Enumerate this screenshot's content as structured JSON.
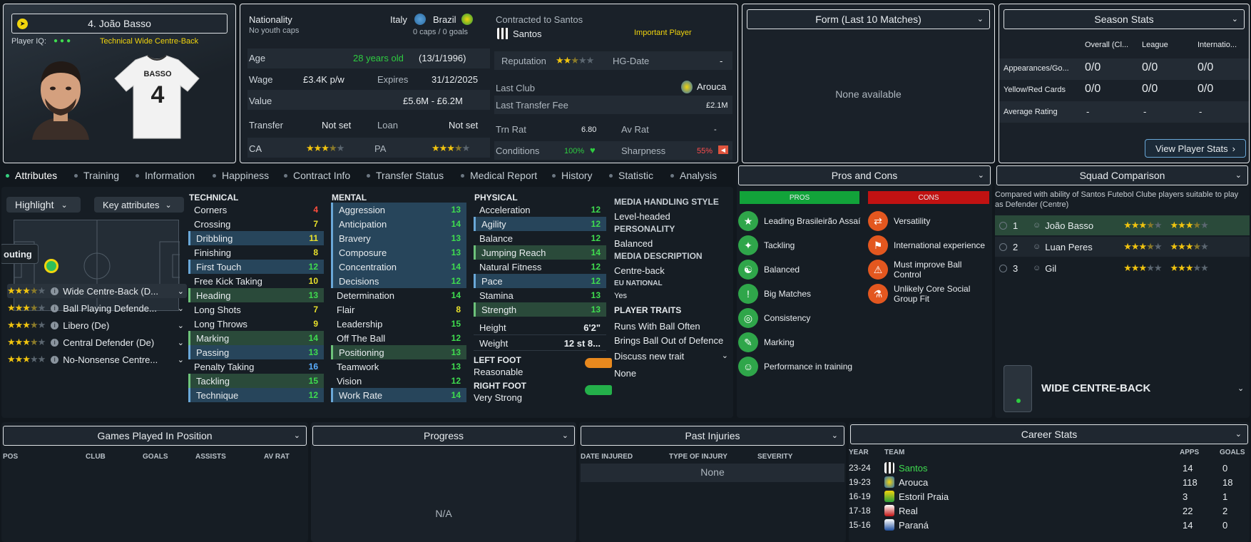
{
  "colors": {
    "accent_green": "#35d07f",
    "pros": "#12a33a",
    "cons": "#c11212",
    "yellow": "#f1d40d"
  },
  "player": {
    "name": "4. João Basso",
    "iq_label": "Player IQ:",
    "role_desc": "Technical Wide Centre-Back",
    "shirt_name": "BASSO",
    "shirt_number": "4"
  },
  "info": {
    "nationality_label": "Nationality",
    "nationality_sub": "No youth caps",
    "nat1": "Italy",
    "nat2": "Brazil",
    "caps": "0 caps / 0 goals",
    "age_label": "Age",
    "age": "28 years old",
    "dob": "(13/1/1996)",
    "wage_label": "Wage",
    "wage": "£3.4K p/w",
    "expires_label": "Expires",
    "expires": "31/12/2025",
    "value_label": "Value",
    "value": "£5.6M - £6.2M",
    "transfer_label": "Transfer",
    "transfer": "Not set",
    "loan_label": "Loan",
    "loan": "Not set",
    "ca_label": "CA",
    "pa_label": "PA"
  },
  "contract": {
    "contracted_label": "Contracted to Santos",
    "club": "Santos",
    "status": "Important Player",
    "reputation_label": "Reputation",
    "hg_label": "HG-Date",
    "hg_value": "-",
    "last_club_label": "Last Club",
    "last_club": "Arouca",
    "last_fee_label": "Last Transfer Fee",
    "last_fee": "£2.1M",
    "trn_label": "Trn Rat",
    "trn_value": "6.80",
    "av_label": "Av Rat",
    "av_value": "-",
    "conditions_label": "Conditions",
    "conditions_value": "100%",
    "sharpness_label": "Sharpness",
    "sharpness_value": "55%"
  },
  "form": {
    "title": "Form (Last 10 Matches)",
    "empty": "None available"
  },
  "season": {
    "title": "Season Stats",
    "cols": [
      "Overall (Cl...",
      "League",
      "Internatio..."
    ],
    "rows": [
      {
        "label": "Appearances/Go...",
        "vals": [
          "0/0",
          "0/0",
          "0/0"
        ]
      },
      {
        "label": "Yellow/Red Cards",
        "vals": [
          "0/0",
          "0/0",
          "0/0"
        ]
      },
      {
        "label": "Average Rating",
        "vals": [
          "-",
          "-",
          "-"
        ]
      }
    ],
    "button": "View Player Stats"
  },
  "tabs": [
    "Attributes",
    "Training",
    "Information",
    "Happiness",
    "Contract Info",
    "Transfer Status",
    "Medical Report",
    "History",
    "Statistic",
    "Analysis"
  ],
  "controls": {
    "highlight": "Highlight",
    "key_attrs": "Key attributes",
    "scouting": "outing"
  },
  "roles": [
    {
      "label": "Wide Centre-Back (D...",
      "stars": 3.5
    },
    {
      "label": "Ball Playing Defende...",
      "stars": 3.5
    },
    {
      "label": "Libero (De)",
      "stars": 3.5
    },
    {
      "label": "Central Defender (De)",
      "stars": 3.5
    },
    {
      "label": "No-Nonsense Centre...",
      "stars": 3
    }
  ],
  "technical": {
    "title": "TECHNICAL",
    "items": [
      {
        "n": "Corners",
        "v": "4",
        "c": "r",
        "h": ""
      },
      {
        "n": "Crossing",
        "v": "7",
        "c": "y",
        "h": ""
      },
      {
        "n": "Dribbling",
        "v": "11",
        "c": "y",
        "h": "hl"
      },
      {
        "n": "Finishing",
        "v": "8",
        "c": "y",
        "h": ""
      },
      {
        "n": "First Touch",
        "v": "12",
        "c": "g",
        "h": "hl"
      },
      {
        "n": "Free Kick Taking",
        "v": "10",
        "c": "y",
        "h": ""
      },
      {
        "n": "Heading",
        "v": "13",
        "c": "g",
        "h": "hlg"
      },
      {
        "n": "Long Shots",
        "v": "7",
        "c": "y",
        "h": ""
      },
      {
        "n": "Long Throws",
        "v": "9",
        "c": "y",
        "h": ""
      },
      {
        "n": "Marking",
        "v": "14",
        "c": "g",
        "h": "hlg"
      },
      {
        "n": "Passing",
        "v": "13",
        "c": "g",
        "h": "hl"
      },
      {
        "n": "Penalty Taking",
        "v": "16",
        "c": "b",
        "h": ""
      },
      {
        "n": "Tackling",
        "v": "15",
        "c": "g",
        "h": "hlg"
      },
      {
        "n": "Technique",
        "v": "12",
        "c": "g",
        "h": "hl"
      }
    ]
  },
  "mental": {
    "title": "MENTAL",
    "items": [
      {
        "n": "Aggression",
        "v": "13",
        "c": "g",
        "h": "hl"
      },
      {
        "n": "Anticipation",
        "v": "14",
        "c": "g",
        "h": "hl"
      },
      {
        "n": "Bravery",
        "v": "13",
        "c": "g",
        "h": "hl"
      },
      {
        "n": "Composure",
        "v": "13",
        "c": "g",
        "h": "hl"
      },
      {
        "n": "Concentration",
        "v": "14",
        "c": "g",
        "h": "hl"
      },
      {
        "n": "Decisions",
        "v": "12",
        "c": "g",
        "h": "hl"
      },
      {
        "n": "Determination",
        "v": "14",
        "c": "g",
        "h": ""
      },
      {
        "n": "Flair",
        "v": "8",
        "c": "y",
        "h": ""
      },
      {
        "n": "Leadership",
        "v": "15",
        "c": "g",
        "h": ""
      },
      {
        "n": "Off The Ball",
        "v": "12",
        "c": "g",
        "h": ""
      },
      {
        "n": "Positioning",
        "v": "13",
        "c": "g",
        "h": "hlg"
      },
      {
        "n": "Teamwork",
        "v": "13",
        "c": "g",
        "h": ""
      },
      {
        "n": "Vision",
        "v": "12",
        "c": "g",
        "h": ""
      },
      {
        "n": "Work Rate",
        "v": "14",
        "c": "g",
        "h": "hl"
      }
    ]
  },
  "physical": {
    "title": "PHYSICAL",
    "items": [
      {
        "n": "Acceleration",
        "v": "12",
        "c": "g",
        "h": ""
      },
      {
        "n": "Agility",
        "v": "12",
        "c": "g",
        "h": "hl"
      },
      {
        "n": "Balance",
        "v": "12",
        "c": "g",
        "h": ""
      },
      {
        "n": "Jumping Reach",
        "v": "14",
        "c": "g",
        "h": "hlg"
      },
      {
        "n": "Natural Fitness",
        "v": "12",
        "c": "g",
        "h": ""
      },
      {
        "n": "Pace",
        "v": "12",
        "c": "g",
        "h": "hl"
      },
      {
        "n": "Stamina",
        "v": "13",
        "c": "g",
        "h": ""
      },
      {
        "n": "Strength",
        "v": "13",
        "c": "g",
        "h": "hlg"
      }
    ],
    "height_label": "Height",
    "height": "6'2\"",
    "weight_label": "Weight",
    "weight": "12 st 8...",
    "left_foot_label": "LEFT FOOT",
    "left_foot": "Reasonable",
    "right_foot_label": "RIGHT FOOT",
    "right_foot": "Very Strong"
  },
  "media": {
    "style_label": "MEDIA HANDLING STYLE",
    "style": "Level-headed",
    "personality_label": "PERSONALITY",
    "personality": "Balanced",
    "desc_label": "MEDIA DESCRIPTION",
    "desc": "Centre-back",
    "eu_label": "EU NATIONAL",
    "eu": "Yes",
    "traits_label": "PLAYER TRAITS",
    "traits": [
      "Runs With Ball Often",
      "Brings Ball Out of Defence"
    ],
    "discuss": "Discuss new trait",
    "none": "None"
  },
  "proscons": {
    "title": "Pros and Cons",
    "pros_label": "PROS",
    "cons_label": "CONS",
    "pros": [
      "Leading Brasileirão Assaí",
      "Tackling",
      "Balanced",
      "Big Matches",
      "Consistency",
      "Marking",
      "Performance in training"
    ],
    "cons": [
      "Versatility",
      "International experience",
      "Must improve Ball Control",
      "Unlikely Core Social Group Fit"
    ]
  },
  "squad": {
    "title": "Squad Comparison",
    "desc": "Compared with ability of Santos Futebol Clube players suitable to play as Defender (Centre)",
    "rows": [
      {
        "rank": "1",
        "name": "João Basso",
        "ca": 3.5,
        "pa": 3.5
      },
      {
        "rank": "2",
        "name": "Luan Peres",
        "ca": 3.5,
        "pa": 3.5
      },
      {
        "rank": "3",
        "name": "Gil",
        "ca": 3,
        "pa": 3
      }
    ],
    "position": "WIDE CENTRE-BACK"
  },
  "games": {
    "title": "Games Played In Position",
    "cols": [
      "POS",
      "CLUB",
      "GOALS",
      "ASSISTS",
      "AV RAT"
    ]
  },
  "progress": {
    "title": "Progress",
    "empty": "N/A"
  },
  "injuries": {
    "title": "Past Injuries",
    "cols": [
      "DATE INJURED",
      "TYPE OF INJURY",
      "SEVERITY"
    ],
    "empty": "None"
  },
  "career": {
    "title": "Career Stats",
    "cols": [
      "YEAR",
      "TEAM",
      "APPS",
      "GOALS"
    ],
    "rows": [
      {
        "year": "23-24",
        "team": "Santos",
        "apps": "14",
        "goals": "0",
        "current": true
      },
      {
        "year": "19-23",
        "team": "Arouca",
        "apps": "118",
        "goals": "18",
        "current": false
      },
      {
        "year": "16-19",
        "team": "Estoril Praia",
        "apps": "3",
        "goals": "1",
        "current": false
      },
      {
        "year": "17-18",
        "team": "Real",
        "apps": "22",
        "goals": "2",
        "current": false
      },
      {
        "year": "15-16",
        "team": "Paraná",
        "apps": "14",
        "goals": "0",
        "current": false
      }
    ]
  }
}
